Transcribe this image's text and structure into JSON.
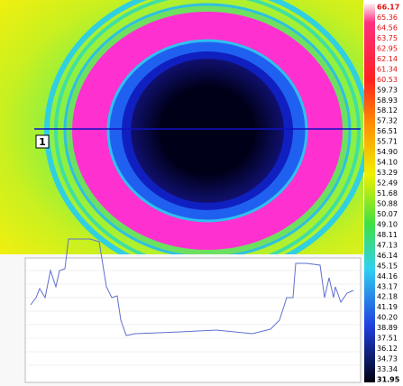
{
  "marker": {
    "label": "1"
  },
  "scale": {
    "labels": [
      "66.17",
      "65.36",
      "64.56",
      "63.75",
      "62.95",
      "62.14",
      "61.34",
      "60.53",
      "59.73",
      "58.93",
      "58.12",
      "57.32",
      "56.51",
      "55.71",
      "54.90",
      "54.10",
      "53.29",
      "52.49",
      "51.68",
      "50.88",
      "50.07",
      "49.10",
      "48.11",
      "47.13",
      "46.14",
      "45.15",
      "44.16",
      "43.17",
      "42.18",
      "41.19",
      "40.20",
      "38.89",
      "37.51",
      "36.12",
      "34.73",
      "33.34",
      "31.95"
    ]
  }
}
